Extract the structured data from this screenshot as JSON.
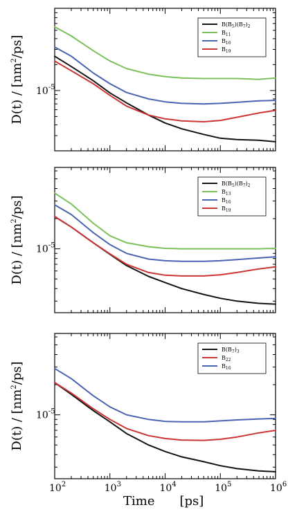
{
  "figure": {
    "ylabel_prefix": "D(t)",
    "ylabel_slash": "/",
    "ylabel_unit_main": "[nm",
    "ylabel_unit_exp": "2",
    "ylabel_unit_tail": "/ps]",
    "xlabel_main": "Time",
    "xlabel_unit": "[ps]",
    "ytick_base": "10",
    "ytick_exp": "-5",
    "xtick_base": "10",
    "xtick_exps": [
      "2",
      "3",
      "4",
      "5",
      "6"
    ]
  },
  "colors": {
    "black": "#111111",
    "green": "#7cc05a",
    "blue": "#4a63b0",
    "red": "#cc3333"
  },
  "chart_data": [
    {
      "type": "line",
      "x_scale": "log",
      "y_scale": "log",
      "xlim": [
        100,
        1000000
      ],
      "xlabel": "",
      "ylabel": "D(t) / [nm^2/ps]",
      "yticks": [
        "10^-5"
      ],
      "legend": {
        "position": "top-right",
        "entries": [
          {
            "base": "B(B",
            "s1": "5",
            "mid": ")(B",
            "s2": "7",
            "tail": ")",
            "s3": "2",
            "color": "#111111"
          },
          {
            "base": "B",
            "s1": "11",
            "color": "#7cc05a"
          },
          {
            "base": "B",
            "s1": "16",
            "color": "#4a63b0"
          },
          {
            "base": "B",
            "s1": "19",
            "color": "#cc3333"
          }
        ]
      },
      "series": [
        {
          "name": "B(B5)(B7)2",
          "color": "#111111",
          "x": [
            100,
            200,
            500,
            1000,
            2000,
            5000,
            10000,
            20000,
            50000,
            100000,
            200000,
            500000,
            1000000
          ],
          "y": [
            2.5e-05,
            1.9e-05,
            1.3e-05,
            9.4e-06,
            7.2e-06,
            5.2e-06,
            4.2e-06,
            3.6e-06,
            3.1e-06,
            2.8e-06,
            2.7e-06,
            2.65e-06,
            2.55e-06
          ]
        },
        {
          "name": "B11",
          "color": "#7cc05a",
          "x": [
            100,
            200,
            500,
            1000,
            2000,
            5000,
            10000,
            20000,
            50000,
            100000,
            200000,
            500000,
            1000000
          ],
          "y": [
            5.5e-05,
            4.3e-05,
            2.9e-05,
            2.2e-05,
            1.8e-05,
            1.55e-05,
            1.45e-05,
            1.4e-05,
            1.38e-05,
            1.38e-05,
            1.38e-05,
            1.35e-05,
            1.4e-05
          ]
        },
        {
          "name": "B16",
          "color": "#4a63b0",
          "x": [
            100,
            200,
            500,
            1000,
            2000,
            5000,
            10000,
            20000,
            50000,
            100000,
            200000,
            500000,
            1000000
          ],
          "y": [
            3.2e-05,
            2.5e-05,
            1.6e-05,
            1.2e-05,
            9.5e-06,
            8e-06,
            7.4e-06,
            7.1e-06,
            7e-06,
            7.1e-06,
            7.3e-06,
            7.6e-06,
            7.7e-06
          ]
        },
        {
          "name": "B19",
          "color": "#cc3333",
          "x": [
            100,
            200,
            500,
            1000,
            2000,
            5000,
            10000,
            20000,
            50000,
            100000,
            200000,
            500000,
            1000000
          ],
          "y": [
            2.2e-05,
            1.7e-05,
            1.2e-05,
            8.8e-06,
            6.6e-06,
            5.2e-06,
            4.7e-06,
            4.45e-06,
            4.35e-06,
            4.5e-06,
            4.9e-06,
            5.5e-06,
            5.9e-06
          ]
        }
      ]
    },
    {
      "type": "line",
      "x_scale": "log",
      "y_scale": "log",
      "xlim": [
        100,
        1000000
      ],
      "xlabel": "",
      "ylabel": "D(t) / [nm^2/ps]",
      "yticks": [
        "10^-5"
      ],
      "legend": {
        "position": "top-right",
        "entries": [
          {
            "base": "B(B",
            "s1": "5",
            "mid": ")(B",
            "s2": "7",
            "tail": ")",
            "s3": "2",
            "color": "#111111"
          },
          {
            "base": "B",
            "s1": "13",
            "color": "#7cc05a"
          },
          {
            "base": "B",
            "s1": "16",
            "color": "#4a63b0"
          },
          {
            "base": "B",
            "s1": "19",
            "color": "#cc3333"
          }
        ]
      },
      "series": [
        {
          "name": "B(B5)(B7)2",
          "color": "#111111",
          "x": [
            100,
            200,
            500,
            1000,
            2000,
            5000,
            10000,
            20000,
            50000,
            100000,
            200000,
            500000,
            1000000
          ],
          "y": [
            2.1e-05,
            1.65e-05,
            1.15e-05,
            8.8e-06,
            6.8e-06,
            5.3e-06,
            4.6e-06,
            4e-06,
            3.5e-06,
            3.2e-06,
            3e-06,
            2.85e-06,
            2.8e-06
          ]
        },
        {
          "name": "B13",
          "color": "#7cc05a",
          "x": [
            100,
            200,
            500,
            1000,
            2000,
            5000,
            10000,
            20000,
            50000,
            100000,
            200000,
            500000,
            1000000
          ],
          "y": [
            3.6e-05,
            2.8e-05,
            1.8e-05,
            1.35e-05,
            1.15e-05,
            1.05e-05,
            1.01e-05,
            1e-05,
            1e-05,
            1e-05,
            1e-05,
            1e-05,
            1.01e-05
          ]
        },
        {
          "name": "B16",
          "color": "#4a63b0",
          "x": [
            100,
            200,
            500,
            1000,
            2000,
            5000,
            10000,
            20000,
            50000,
            100000,
            200000,
            500000,
            1000000
          ],
          "y": [
            2.75e-05,
            2.2e-05,
            1.45e-05,
            1.1e-05,
            9e-06,
            7.9e-06,
            7.6e-06,
            7.5e-06,
            7.5e-06,
            7.6e-06,
            7.8e-06,
            8.1e-06,
            8.3e-06
          ]
        },
        {
          "name": "B19",
          "color": "#cc3333",
          "x": [
            100,
            200,
            500,
            1000,
            2000,
            5000,
            10000,
            20000,
            50000,
            100000,
            200000,
            500000,
            1000000
          ],
          "y": [
            2.1e-05,
            1.65e-05,
            1.15e-05,
            8.9e-06,
            7e-06,
            5.8e-06,
            5.45e-06,
            5.35e-06,
            5.35e-06,
            5.5e-06,
            5.8e-06,
            6.3e-06,
            6.6e-06
          ]
        }
      ]
    },
    {
      "type": "line",
      "x_scale": "log",
      "y_scale": "log",
      "xlim": [
        100,
        1000000
      ],
      "xlabel": "Time [ps]",
      "ylabel": "D(t) / [nm^2/ps]",
      "yticks": [
        "10^-5"
      ],
      "legend": {
        "position": "top-right",
        "entries": [
          {
            "base": "B(B",
            "s1": "7",
            "tail": ")",
            "s3": "3",
            "color": "#111111"
          },
          {
            "base": "B",
            "s1": "22",
            "color": "#cc3333"
          },
          {
            "base": "B",
            "s1": "16",
            "color": "#4a63b0"
          }
        ]
      },
      "series": [
        {
          "name": "B(B7)3",
          "color": "#111111",
          "x": [
            100,
            200,
            500,
            1000,
            2000,
            5000,
            10000,
            20000,
            50000,
            100000,
            200000,
            500000,
            1000000
          ],
          "y": [
            2.1e-05,
            1.6e-05,
            1.1e-05,
            8.5e-06,
            6.5e-06,
            5e-06,
            4.3e-06,
            3.8e-06,
            3.4e-06,
            3.1e-06,
            2.9e-06,
            2.75e-06,
            2.7e-06
          ]
        },
        {
          "name": "B22",
          "color": "#cc3333",
          "x": [
            100,
            200,
            500,
            1000,
            2000,
            5000,
            10000,
            20000,
            50000,
            100000,
            200000,
            500000,
            1000000
          ],
          "y": [
            2.1e-05,
            1.65e-05,
            1.15e-05,
            9e-06,
            7.3e-06,
            6.2e-06,
            5.8e-06,
            5.6e-06,
            5.55e-06,
            5.7e-06,
            6e-06,
            6.6e-06,
            7e-06
          ]
        },
        {
          "name": "B16",
          "color": "#4a63b0",
          "x": [
            100,
            200,
            500,
            1000,
            2000,
            5000,
            10000,
            20000,
            50000,
            100000,
            200000,
            500000,
            1000000
          ],
          "y": [
            2.9e-05,
            2.3e-05,
            1.55e-05,
            1.2e-05,
            1e-05,
            9e-06,
            8.6e-06,
            8.5e-06,
            8.5e-06,
            8.7e-06,
            8.9e-06,
            9.1e-06,
            9.2e-06
          ]
        }
      ]
    }
  ]
}
